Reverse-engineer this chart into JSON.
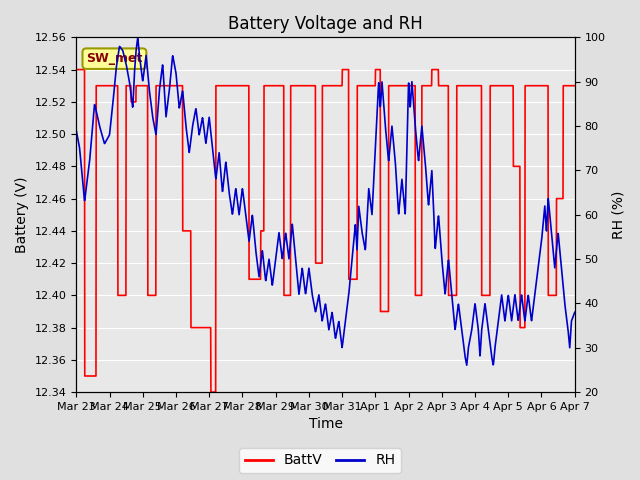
{
  "title": "Battery Voltage and RH",
  "xlabel": "Time",
  "ylabel_left": "Battery (V)",
  "ylabel_right": "RH (%)",
  "ylim_left": [
    12.34,
    12.56
  ],
  "ylim_right": [
    20,
    100
  ],
  "yticks_left": [
    12.34,
    12.36,
    12.38,
    12.4,
    12.42,
    12.44,
    12.46,
    12.48,
    12.5,
    12.52,
    12.54,
    12.56
  ],
  "yticks_right": [
    20,
    30,
    40,
    50,
    60,
    70,
    80,
    90,
    100
  ],
  "annotation_text": "SW_met",
  "legend_entries": [
    "BattV",
    "RH"
  ],
  "battv_color": "#FF0000",
  "rh_color": "#0000CC",
  "background_color": "#E0E0E0",
  "plot_bg_color": "#E8E8E8",
  "grid_color": "#FFFFFF",
  "title_fontsize": 12,
  "axis_label_fontsize": 10,
  "tick_fontsize": 8,
  "legend_fontsize": 10,
  "xticklabels": [
    "Mar 23",
    "Mar 24",
    "Mar 25",
    "Mar 26",
    "Mar 27",
    "Mar 28",
    "Mar 29",
    "Mar 30",
    "Mar 31",
    "Apr 1",
    "Apr 2",
    "Apr 3",
    "Apr 4",
    "Apr 5",
    "Apr 6",
    "Apr 7"
  ],
  "xtick_positions": [
    0,
    1,
    2,
    3,
    4,
    5,
    6,
    7,
    8,
    9,
    10,
    11,
    12,
    13,
    14,
    15
  ],
  "xlim": [
    0,
    15
  ]
}
